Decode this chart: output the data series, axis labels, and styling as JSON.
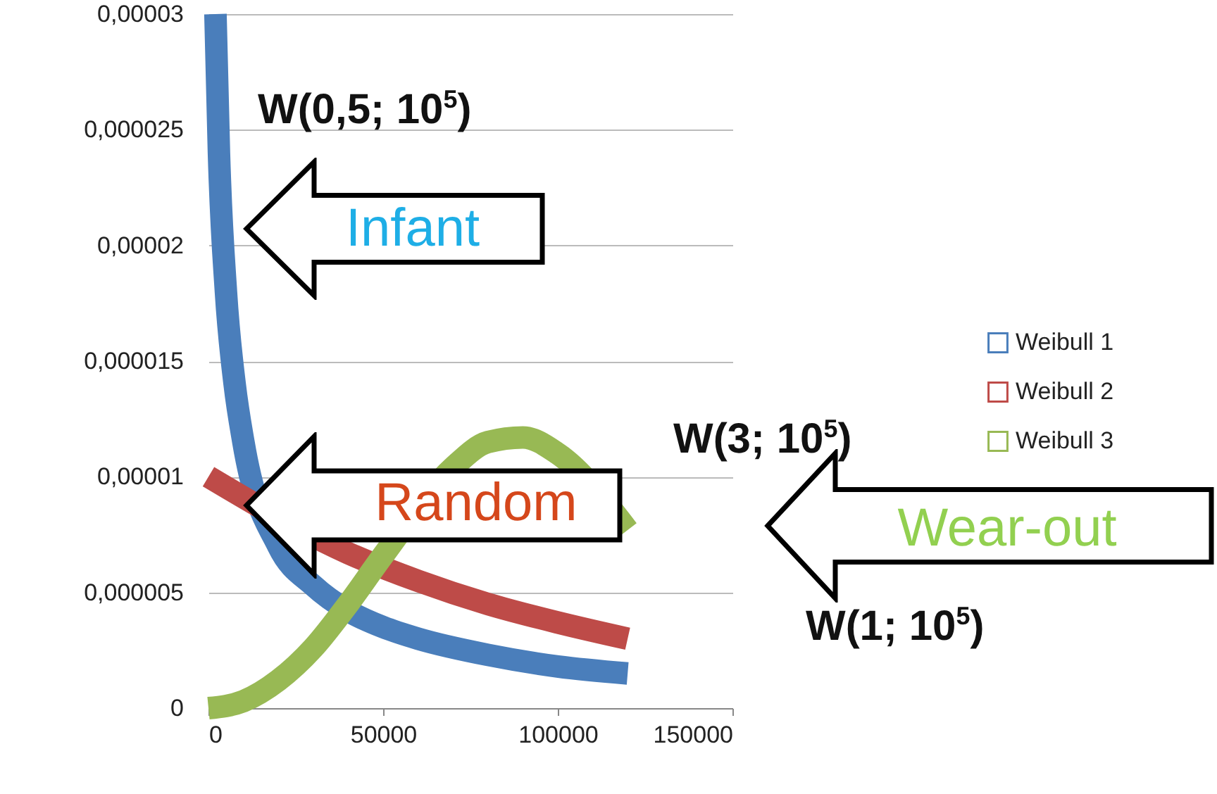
{
  "chart_data": {
    "type": "line",
    "xlim": [
      0,
      150000
    ],
    "xticks": [
      0,
      50000,
      100000,
      150000
    ],
    "ylim": [
      0,
      3e-05
    ],
    "yticks": [
      0,
      {
        "value": 5e-06,
        "label": "0,000005"
      },
      {
        "value": 1e-05,
        "label": "0,00001"
      },
      {
        "value": 1.5e-05,
        "label": "0,000015"
      },
      {
        "value": 2e-05,
        "label": "0,00002"
      },
      {
        "value": 2.5e-05,
        "label": "0,000025"
      },
      {
        "value": 3e-05,
        "label": "0,00003"
      }
    ],
    "grid": "y",
    "legend": "right",
    "series": [
      {
        "name": "Weibull 1",
        "color": "#4a7ebb",
        "x": [
          2000,
          3000,
          5000,
          7500,
          10000,
          20000,
          30000,
          40000,
          50000,
          60000,
          80000,
          100000,
          120000
        ],
        "values": [
          3e-05,
          2.4e-05,
          1.8e-05,
          1.4e-05,
          1.15e-05,
          7e-06,
          5.3e-06,
          4.2e-06,
          3.5e-06,
          3e-06,
          2.3e-06,
          1.8e-06,
          1.5e-06
        ]
      },
      {
        "name": "Weibull 2",
        "color": "#be4b48",
        "x": [
          0,
          40000,
          60000,
          80000,
          100000,
          120000
        ],
        "values": [
          1e-05,
          6.7e-06,
          5.5e-06,
          4.5e-06,
          3.7e-06,
          3e-06
        ]
      },
      {
        "name": "Weibull 3",
        "color": "#98b954",
        "x": [
          0,
          10000,
          20000,
          30000,
          40000,
          50000,
          70000,
          80000,
          90000,
          100000,
          120000
        ],
        "values": [
          0,
          3e-07,
          1.2e-06,
          2.6e-06,
          4.5e-06,
          6.6e-06,
          1.04e-05,
          1.15e-05,
          1.17e-05,
          1.1e-05,
          7.7e-06
        ]
      }
    ],
    "annotations": [
      "W(0,5; 10$^{5}$)",
      "Infant",
      "Random",
      "W(3; 10$^{5}$)",
      "Wear-out",
      "W(1; 10$^{5}$)"
    ]
  }
}
